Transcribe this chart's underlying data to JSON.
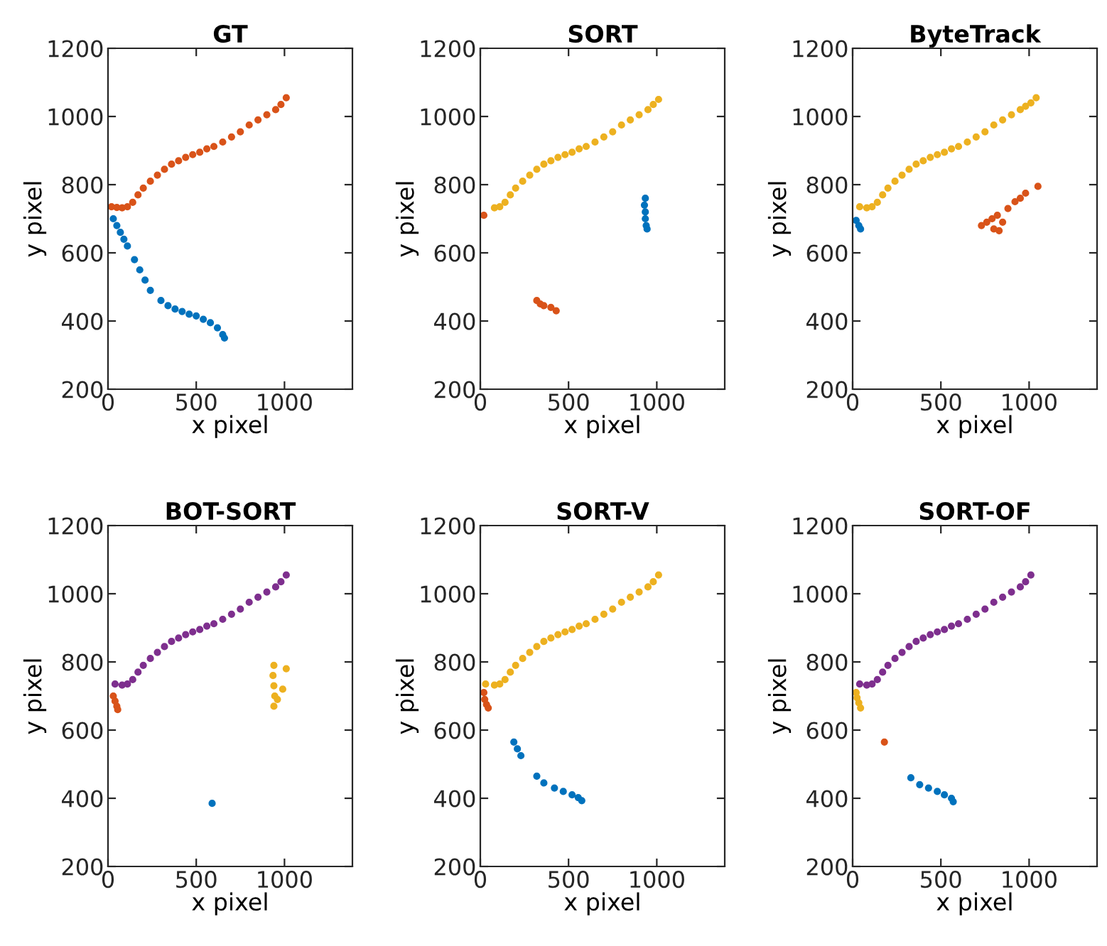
{
  "chart_data": [
    {
      "type": "scatter",
      "title": "GT",
      "xlabel": "x pixel",
      "ylabel": "y pixel",
      "xlim": [
        0,
        1385
      ],
      "ylim": [
        200,
        1200
      ],
      "xticks": [
        0,
        500,
        1000
      ],
      "yticks": [
        200,
        400,
        600,
        800,
        1000,
        1200
      ],
      "marker": "circle",
      "grid": false,
      "legend": false,
      "series": [
        {
          "color": "#d95319",
          "x": [
            20,
            50,
            80,
            110,
            140,
            170,
            200,
            240,
            280,
            320,
            360,
            400,
            440,
            480,
            520,
            560,
            600,
            650,
            700,
            750,
            800,
            850,
            900,
            950,
            980,
            1010
          ],
          "values": [
            735,
            733,
            732,
            735,
            748,
            770,
            790,
            810,
            828,
            845,
            860,
            870,
            880,
            888,
            895,
            905,
            912,
            925,
            940,
            955,
            975,
            990,
            1005,
            1020,
            1035,
            1055
          ]
        },
        {
          "color": "#0072bd",
          "x": [
            30,
            50,
            70,
            90,
            110,
            150,
            180,
            210,
            240,
            300,
            340,
            380,
            420,
            460,
            500,
            540,
            580,
            620,
            650,
            660
          ],
          "values": [
            700,
            680,
            660,
            640,
            620,
            580,
            550,
            520,
            490,
            460,
            445,
            435,
            428,
            420,
            415,
            405,
            395,
            380,
            360,
            350
          ]
        }
      ]
    },
    {
      "type": "scatter",
      "title": "SORT",
      "xlabel": "x pixel",
      "ylabel": "y pixel",
      "xlim": [
        0,
        1385
      ],
      "ylim": [
        200,
        1200
      ],
      "xticks": [
        0,
        500,
        1000
      ],
      "yticks": [
        200,
        400,
        600,
        800,
        1000,
        1200
      ],
      "marker": "circle",
      "grid": false,
      "legend": false,
      "series": [
        {
          "color": "#edb120",
          "x": [
            80,
            110,
            140,
            170,
            200,
            240,
            280,
            320,
            360,
            400,
            440,
            480,
            520,
            560,
            600,
            650,
            700,
            750,
            800,
            850,
            900,
            950,
            980,
            1010
          ],
          "values": [
            732,
            735,
            748,
            770,
            790,
            810,
            828,
            845,
            860,
            870,
            880,
            888,
            895,
            905,
            912,
            925,
            940,
            955,
            975,
            990,
            1005,
            1020,
            1035,
            1050
          ]
        },
        {
          "color": "#d95319",
          "x": [
            20,
            320,
            340,
            360,
            400,
            430
          ],
          "values": [
            710,
            460,
            450,
            445,
            440,
            430
          ]
        },
        {
          "color": "#0072bd",
          "x": [
            935,
            930,
            935,
            935,
            940,
            945
          ],
          "values": [
            760,
            740,
            720,
            700,
            680,
            670
          ]
        }
      ]
    },
    {
      "type": "scatter",
      "title": "ByteTrack",
      "xlabel": "x pixel",
      "ylabel": "y pixel",
      "xlim": [
        0,
        1385
      ],
      "ylim": [
        200,
        1200
      ],
      "xticks": [
        0,
        500,
        1000
      ],
      "yticks": [
        200,
        400,
        600,
        800,
        1000,
        1200
      ],
      "marker": "circle",
      "grid": false,
      "legend": false,
      "series": [
        {
          "color": "#edb120",
          "x": [
            40,
            80,
            110,
            140,
            170,
            200,
            240,
            280,
            320,
            360,
            400,
            440,
            480,
            520,
            560,
            600,
            650,
            700,
            750,
            800,
            850,
            900,
            950,
            980,
            1010,
            1040
          ],
          "values": [
            735,
            732,
            735,
            748,
            770,
            790,
            810,
            828,
            845,
            860,
            870,
            880,
            888,
            895,
            905,
            912,
            925,
            940,
            955,
            975,
            990,
            1005,
            1020,
            1030,
            1040,
            1055
          ]
        },
        {
          "color": "#0072bd",
          "x": [
            20,
            35,
            45
          ],
          "values": [
            695,
            680,
            670
          ]
        },
        {
          "color": "#d95319",
          "x": [
            730,
            760,
            790,
            800,
            830,
            850,
            820,
            880,
            920,
            950,
            980,
            1050
          ],
          "values": [
            680,
            690,
            700,
            670,
            665,
            690,
            710,
            730,
            750,
            760,
            775,
            795
          ]
        }
      ]
    },
    {
      "type": "scatter",
      "title": "BOT-SORT",
      "xlabel": "x pixel",
      "ylabel": "y pixel",
      "xlim": [
        0,
        1385
      ],
      "ylim": [
        200,
        1200
      ],
      "xticks": [
        0,
        500,
        1000
      ],
      "yticks": [
        200,
        400,
        600,
        800,
        1000,
        1200
      ],
      "marker": "circle",
      "grid": false,
      "legend": false,
      "series": [
        {
          "color": "#7e2f8e",
          "x": [
            40,
            80,
            110,
            140,
            170,
            200,
            240,
            280,
            320,
            360,
            400,
            440,
            480,
            520,
            560,
            600,
            650,
            700,
            750,
            800,
            850,
            900,
            950,
            980,
            1010
          ],
          "values": [
            735,
            732,
            735,
            748,
            770,
            790,
            810,
            828,
            845,
            860,
            870,
            880,
            888,
            895,
            905,
            912,
            925,
            940,
            955,
            975,
            990,
            1005,
            1020,
            1035,
            1055
          ]
        },
        {
          "color": "#d95319",
          "x": [
            30,
            40,
            50,
            55
          ],
          "values": [
            700,
            685,
            670,
            660
          ]
        },
        {
          "color": "#edb120",
          "x": [
            940,
            935,
            940,
            945,
            940,
            960,
            990,
            1010
          ],
          "values": [
            790,
            760,
            730,
            700,
            670,
            690,
            720,
            780
          ]
        },
        {
          "color": "#0072bd",
          "x": [
            590
          ],
          "values": [
            385
          ]
        }
      ]
    },
    {
      "type": "scatter",
      "title": "SORT-V",
      "xlabel": "x pixel",
      "ylabel": "y pixel",
      "xlim": [
        0,
        1385
      ],
      "ylim": [
        200,
        1200
      ],
      "xticks": [
        0,
        500,
        1000
      ],
      "yticks": [
        200,
        400,
        600,
        800,
        1000,
        1200
      ],
      "marker": "circle",
      "grid": false,
      "legend": false,
      "series": [
        {
          "color": "#edb120",
          "x": [
            30,
            80,
            110,
            140,
            170,
            200,
            240,
            280,
            320,
            360,
            400,
            440,
            480,
            520,
            560,
            600,
            650,
            700,
            750,
            800,
            850,
            900,
            950,
            980,
            1010
          ],
          "values": [
            735,
            732,
            735,
            748,
            770,
            790,
            810,
            828,
            845,
            860,
            870,
            880,
            888,
            895,
            905,
            912,
            925,
            940,
            955,
            975,
            990,
            1005,
            1020,
            1035,
            1055
          ]
        },
        {
          "color": "#d95319",
          "x": [
            20,
            25,
            35,
            45
          ],
          "values": [
            710,
            690,
            675,
            665
          ]
        },
        {
          "color": "#0072bd",
          "x": [
            190,
            210,
            230,
            320,
            360,
            420,
            470,
            520,
            555,
            575
          ],
          "values": [
            565,
            545,
            525,
            465,
            445,
            430,
            420,
            410,
            402,
            393
          ]
        }
      ]
    },
    {
      "type": "scatter",
      "title": "SORT-OF",
      "xlabel": "x pixel",
      "ylabel": "y pixel",
      "xlim": [
        0,
        1385
      ],
      "ylim": [
        200,
        1200
      ],
      "xticks": [
        0,
        500,
        1000
      ],
      "yticks": [
        200,
        400,
        600,
        800,
        1000,
        1200
      ],
      "marker": "circle",
      "grid": false,
      "legend": false,
      "series": [
        {
          "color": "#7e2f8e",
          "x": [
            40,
            80,
            110,
            140,
            170,
            200,
            240,
            280,
            320,
            360,
            400,
            440,
            480,
            520,
            560,
            600,
            650,
            700,
            750,
            800,
            850,
            900,
            950,
            980,
            1010
          ],
          "values": [
            735,
            732,
            735,
            748,
            770,
            790,
            810,
            828,
            845,
            860,
            870,
            880,
            888,
            895,
            905,
            912,
            925,
            940,
            955,
            975,
            990,
            1005,
            1020,
            1035,
            1055
          ]
        },
        {
          "color": "#edb120",
          "x": [
            20,
            25,
            35,
            45
          ],
          "values": [
            710,
            695,
            680,
            665
          ]
        },
        {
          "color": "#d95319",
          "x": [
            180
          ],
          "values": [
            565
          ]
        },
        {
          "color": "#0072bd",
          "x": [
            330,
            380,
            430,
            480,
            520,
            560,
            570
          ],
          "values": [
            460,
            440,
            430,
            420,
            410,
            400,
            390
          ]
        }
      ]
    }
  ]
}
